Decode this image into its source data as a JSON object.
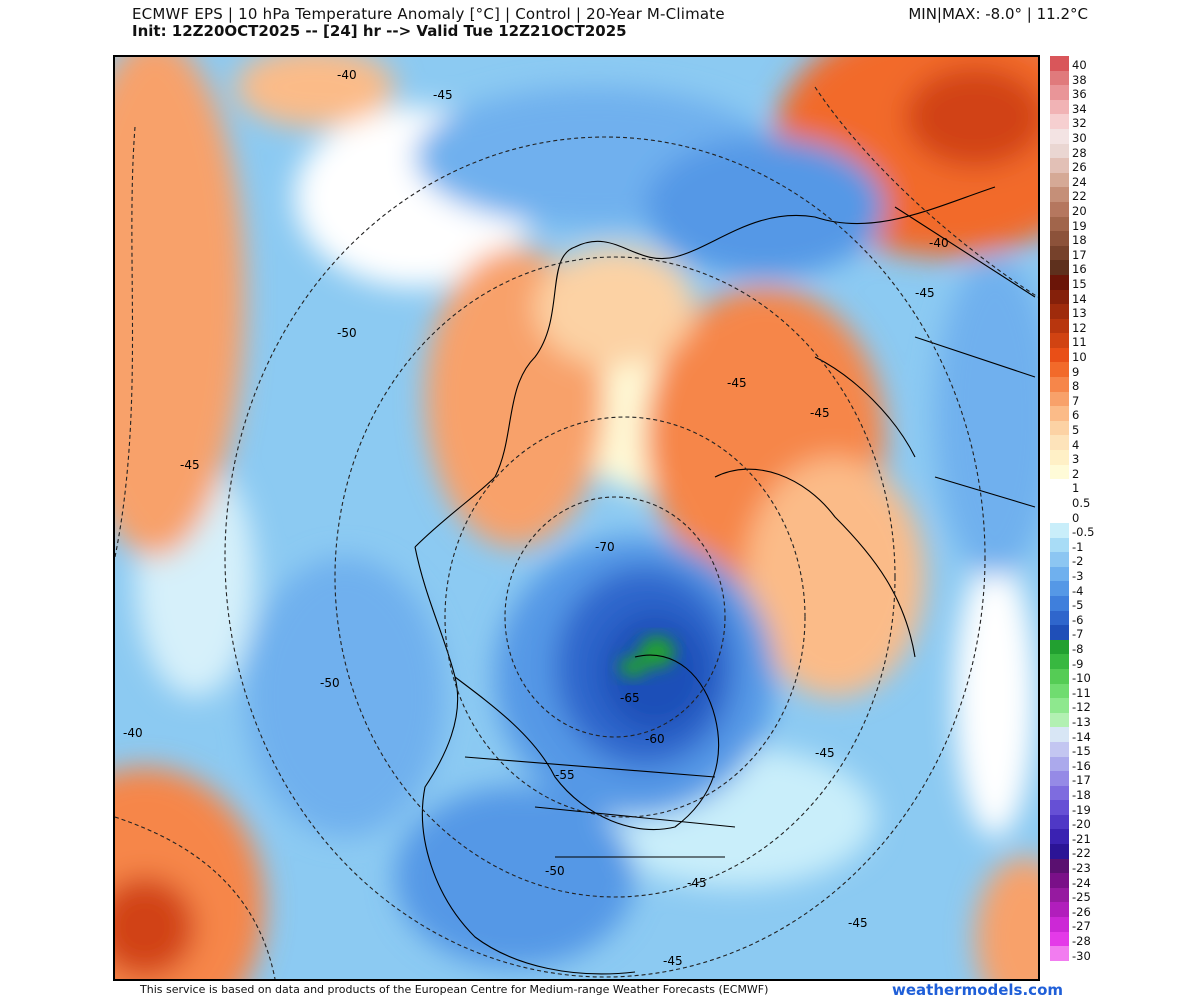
{
  "header": {
    "title_line1": "ECMWF EPS | 10 hPa Temperature Anomaly [°C] | Control | 20-Year M-Climate",
    "title_line2": "Init: 12Z20OCT2025 -- [24] hr --> Valid Tue 12Z21OCT2025",
    "minmax": "MIN|MAX: -8.0° | 11.2°C"
  },
  "contour_labels": [
    "-40",
    "-45",
    "-45",
    "-50",
    "-45",
    "-50",
    "-40",
    "-45",
    "-70",
    "-65",
    "-60",
    "-55",
    "-50",
    "-45",
    "-45",
    "-45",
    "-45",
    "-40",
    "-45"
  ],
  "colorbar": {
    "labels": [
      "40",
      "38",
      "36",
      "34",
      "32",
      "30",
      "28",
      "26",
      "24",
      "22",
      "20",
      "19",
      "18",
      "17",
      "16",
      "15",
      "14",
      "13",
      "12",
      "11",
      "10",
      "9",
      "8",
      "7",
      "6",
      "5",
      "4",
      "3",
      "2",
      "1",
      "0.5",
      "0",
      "-0.5",
      "-1",
      "-2",
      "-3",
      "-4",
      "-5",
      "-6",
      "-7",
      "-8",
      "-9",
      "-10",
      "-11",
      "-12",
      "-13",
      "-14",
      "-15",
      "-16",
      "-17",
      "-18",
      "-19",
      "-20",
      "-21",
      "-22",
      "-23",
      "-24",
      "-25",
      "-26",
      "-27",
      "-28",
      "-30"
    ],
    "colors": [
      "#d9565a",
      "#e07a7c",
      "#e99598",
      "#f1b3b5",
      "#f6cfd0",
      "#f3e3e3",
      "#ead6d2",
      "#e2c0b6",
      "#d5a996",
      "#c58f78",
      "#b5775f",
      "#a1654b",
      "#8c523a",
      "#76412b",
      "#5e301d",
      "#6b1508",
      "#85200a",
      "#9f2b0c",
      "#b8360e",
      "#d14312",
      "#e94f17",
      "#f26a2a",
      "#f6864a",
      "#f8a16a",
      "#fbbb88",
      "#fcd2a4",
      "#fde3ba",
      "#fff0c6",
      "#fffbd8",
      "#ffffff",
      "#ffffff",
      "#ffffff",
      "#c9eefa",
      "#a8dcf6",
      "#8cc6f2",
      "#6fb0ee",
      "#5598e6",
      "#3f7fdc",
      "#2f66cc",
      "#1f4fb8",
      "#22a030",
      "#38b840",
      "#55cc55",
      "#70dc70",
      "#8ee88e",
      "#b2f0b2",
      "#d8e6f5",
      "#c3c6f1",
      "#aba9ec",
      "#958ae6",
      "#7e6cdf",
      "#6650d5",
      "#4f38c6",
      "#3a22b2",
      "#2b1496",
      "#5a1070",
      "#7a1088",
      "#961aa0",
      "#b11ebc",
      "#cc28d6",
      "#e43ae8",
      "#f27cf0"
    ]
  },
  "footer": {
    "disclaimer": "This service is based on data and products of the European Centre for Medium-range Weather Forecasts (ECMWF)",
    "brand": "weathermodels.com"
  }
}
